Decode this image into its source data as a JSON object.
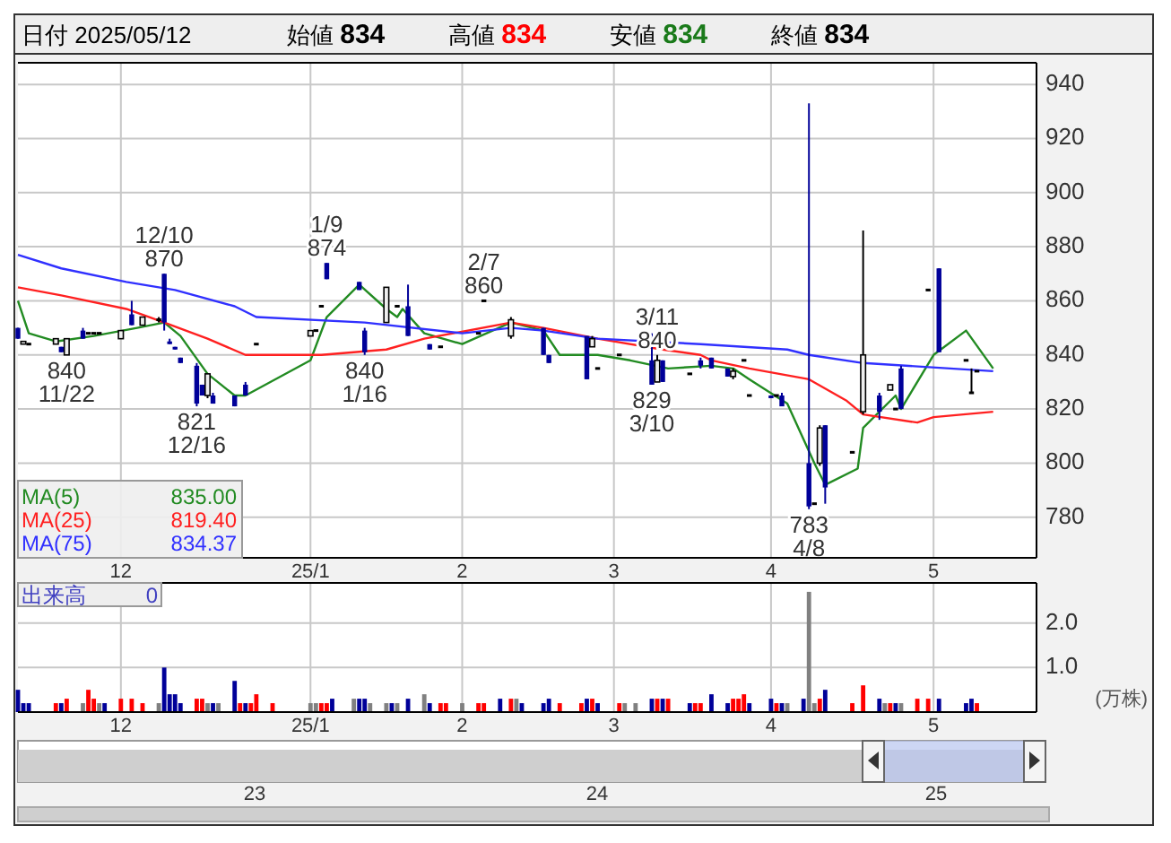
{
  "chart_data": [
    {
      "type": "candlestick",
      "grid": true,
      "legend": "bottom left",
      "xlim": [
        "2024-11-13",
        "2025-05-20"
      ],
      "ylim": [
        765,
        948
      ],
      "yticks": [
        780,
        800,
        820,
        840,
        860,
        880,
        900,
        920,
        940
      ],
      "xticks": [
        {
          "value": "2024-12-02",
          "label": "12"
        },
        {
          "value": "2025-01-06",
          "label": "25/1"
        },
        {
          "value": "2025-02-03",
          "label": "2"
        },
        {
          "value": "2025-03-03",
          "label": "3"
        },
        {
          "value": "2025-04-01",
          "label": "4"
        },
        {
          "value": "2025-05-01",
          "label": "5"
        }
      ],
      "x": [
        "2024-11-13",
        "2024-11-14",
        "2024-11-15",
        "2024-11-20",
        "2024-11-21",
        "2024-11-22",
        "2024-11-25",
        "2024-11-26",
        "2024-11-27",
        "2024-11-28",
        "2024-12-02",
        "2024-12-04",
        "2024-12-06",
        "2024-12-09",
        "2024-12-10",
        "2024-12-11",
        "2024-12-12",
        "2024-12-13",
        "2024-12-16",
        "2024-12-17",
        "2024-12-18",
        "2024-12-19",
        "2024-12-23",
        "2024-12-25",
        "2024-12-27",
        "2025-01-06",
        "2025-01-07",
        "2025-01-08",
        "2025-01-09",
        "2025-01-15",
        "2025-01-16",
        "2025-01-20",
        "2025-01-22",
        "2025-01-24",
        "2025-01-28",
        "2025-01-30",
        "2025-02-06",
        "2025-02-07",
        "2025-02-12",
        "2025-02-18",
        "2025-02-19",
        "2025-02-26",
        "2025-02-27",
        "2025-02-28",
        "2025-03-04",
        "2025-03-10",
        "2025-03-11",
        "2025-03-12",
        "2025-03-17",
        "2025-03-19",
        "2025-03-21",
        "2025-03-24",
        "2025-03-25",
        "2025-03-27",
        "2025-03-28",
        "2025-04-01",
        "2025-04-02",
        "2025-04-03",
        "2025-04-08",
        "2025-04-09",
        "2025-04-10",
        "2025-04-11",
        "2025-04-16",
        "2025-04-18",
        "2025-04-21",
        "2025-04-23",
        "2025-04-24",
        "2025-04-25",
        "2025-04-30",
        "2025-05-02",
        "2025-05-07",
        "2025-05-08",
        "2025-05-09"
      ],
      "ohlc": [
        [
          850,
          850,
          846,
          846
        ],
        [
          844,
          845,
          844,
          845
        ],
        [
          844,
          844,
          844,
          844
        ],
        [
          844,
          846,
          844,
          846
        ],
        [
          843,
          843,
          841,
          841
        ],
        [
          840,
          846,
          840,
          846
        ],
        [
          849,
          850,
          846,
          846
        ],
        [
          848,
          848,
          848,
          848
        ],
        [
          848,
          848,
          848,
          848
        ],
        [
          848,
          848,
          848,
          848
        ],
        [
          846,
          849,
          846,
          849
        ],
        [
          855,
          860,
          851,
          851
        ],
        [
          851,
          854,
          851,
          854
        ],
        [
          853,
          854,
          852,
          853
        ],
        [
          870,
          870,
          849,
          852
        ],
        [
          845,
          846,
          844,
          844
        ],
        [
          843,
          843,
          842,
          842
        ],
        [
          839,
          839,
          837,
          837
        ],
        [
          836,
          837,
          821,
          822
        ],
        [
          829,
          829,
          825,
          825
        ],
        [
          825,
          833,
          824,
          833
        ],
        [
          825,
          826,
          822,
          822
        ],
        [
          825,
          825,
          821,
          821
        ],
        [
          829,
          830,
          825,
          825
        ],
        [
          844,
          844,
          844,
          844
        ],
        [
          847,
          849,
          847,
          849
        ],
        [
          849,
          849,
          849,
          849
        ],
        [
          858,
          858,
          858,
          858
        ],
        [
          874,
          874,
          868,
          868
        ],
        [
          867,
          867,
          864,
          864
        ],
        [
          849,
          850,
          840,
          841
        ],
        [
          852,
          865,
          852,
          865
        ],
        [
          858,
          858,
          858,
          858
        ],
        [
          858,
          866,
          847,
          847
        ],
        [
          844,
          844,
          842,
          842
        ],
        [
          843,
          843,
          843,
          843
        ],
        [
          848,
          848,
          848,
          848
        ],
        [
          860,
          860,
          860,
          860
        ],
        [
          847,
          854,
          846,
          853
        ],
        [
          850,
          850,
          840,
          840
        ],
        [
          840,
          840,
          837,
          837
        ],
        [
          847,
          847,
          831,
          831
        ],
        [
          843,
          847,
          843,
          846
        ],
        [
          835,
          835,
          835,
          835
        ],
        [
          840,
          840,
          840,
          840
        ],
        [
          838,
          848,
          829,
          829
        ],
        [
          830,
          840,
          830,
          838
        ],
        [
          838,
          838,
          830,
          830
        ],
        [
          833,
          833,
          833,
          833
        ],
        [
          838,
          839,
          835,
          836
        ],
        [
          839,
          839,
          835,
          835
        ],
        [
          835,
          835,
          832,
          832
        ],
        [
          832,
          835,
          831,
          834
        ],
        [
          838,
          838,
          838,
          838
        ],
        [
          825,
          825,
          825,
          825
        ],
        [
          825,
          825,
          824,
          824
        ],
        [
          825,
          825,
          825,
          825
        ],
        [
          825,
          826,
          821,
          821
        ],
        [
          800,
          933,
          783,
          784
        ],
        [
          785,
          785,
          785,
          785
        ],
        [
          800,
          814,
          799,
          813
        ],
        [
          814,
          814,
          785,
          791
        ],
        [
          804,
          804,
          804,
          804
        ],
        [
          819,
          886,
          818,
          840
        ],
        [
          825,
          826,
          816,
          819
        ],
        [
          827,
          829,
          827,
          829
        ],
        [
          820,
          820,
          820,
          820
        ],
        [
          835,
          836,
          820,
          820
        ],
        [
          864,
          864,
          864,
          864
        ],
        [
          872,
          872,
          841,
          841
        ],
        [
          838,
          838,
          838,
          838
        ],
        [
          826,
          835,
          826,
          826
        ],
        [
          834,
          834,
          834,
          834
        ]
      ],
      "series": [
        {
          "type": "line",
          "name": "MA(5)",
          "color": "#228b22",
          "x": [
            "2024-11-13",
            "2024-11-15",
            "2024-11-20",
            "2024-11-27",
            "2024-12-05",
            "2024-12-10",
            "2024-12-13",
            "2024-12-18",
            "2024-12-23",
            "2024-12-25",
            "2025-01-06",
            "2025-01-09",
            "2025-01-15",
            "2025-01-20",
            "2025-01-22",
            "2025-01-23",
            "2025-01-27",
            "2025-02-03",
            "2025-02-12",
            "2025-02-18",
            "2025-02-21",
            "2025-02-28",
            "2025-03-06",
            "2025-03-13",
            "2025-03-21",
            "2025-03-25",
            "2025-03-28",
            "2025-04-04",
            "2025-04-09",
            "2025-04-11",
            "2025-04-17",
            "2025-04-18",
            "2025-04-24",
            "2025-04-25",
            "2025-05-01",
            "2025-05-07",
            "2025-05-12"
          ],
          "values": [
            860,
            848,
            845,
            847,
            850,
            852,
            847,
            833,
            825,
            825,
            838,
            854,
            866,
            857,
            854,
            857,
            848,
            844,
            852,
            849,
            840,
            840,
            838,
            835,
            836,
            835,
            831,
            822,
            800,
            792,
            798,
            813,
            825,
            820,
            840,
            849,
            835
          ]
        },
        {
          "type": "line",
          "name": "MA(25)",
          "color": "#ff2020",
          "x": [
            "2024-11-13",
            "2024-11-21",
            "2024-12-03",
            "2024-12-10",
            "2024-12-18",
            "2024-12-25",
            "2025-01-08",
            "2025-01-20",
            "2025-01-27",
            "2025-02-12",
            "2025-02-18",
            "2025-02-28",
            "2025-03-12",
            "2025-03-19",
            "2025-03-21",
            "2025-03-28",
            "2025-04-08",
            "2025-04-15",
            "2025-04-18",
            "2025-04-28",
            "2025-05-01",
            "2025-05-12"
          ],
          "values": [
            865,
            862,
            857,
            852,
            846,
            840,
            840,
            842,
            846,
            852,
            850,
            846,
            842,
            840,
            838,
            835,
            831,
            823,
            818,
            815,
            817,
            819
          ]
        },
        {
          "type": "line",
          "name": "MA(75)",
          "color": "#3030ff",
          "x": [
            "2024-11-13",
            "2024-11-21",
            "2024-12-03",
            "2024-12-12",
            "2024-12-23",
            "2024-12-27",
            "2025-01-16",
            "2025-02-03",
            "2025-02-12",
            "2025-02-18",
            "2025-02-28",
            "2025-03-19",
            "2025-04-04",
            "2025-04-08",
            "2025-04-18",
            "2025-05-12"
          ],
          "values": [
            877,
            872,
            867,
            864,
            858,
            854,
            852,
            848,
            850,
            849,
            846,
            844,
            842,
            840,
            837,
            834
          ]
        }
      ],
      "annotations": [
        "日付 2025/05/12",
        "始値 834",
        "高値 834",
        "安値 834",
        "終値 834",
        "835.00",
        "819.40",
        "834.37",
        {
          "text": "12/10",
          "x": "2024-12-10",
          "y": 870
        },
        {
          "text": "870",
          "x": "2024-12-10",
          "y": 870
        },
        {
          "text": "840",
          "x": "2024-11-22",
          "y": 840
        },
        {
          "text": "11/22",
          "x": "2024-11-22",
          "y": 840
        },
        {
          "text": "821",
          "x": "2024-12-16",
          "y": 821
        },
        {
          "text": "12/16",
          "x": "2024-12-16",
          "y": 821
        },
        {
          "text": "1/9",
          "x": "2025-01-09",
          "y": 874
        },
        {
          "text": "874",
          "x": "2025-01-09",
          "y": 874
        },
        {
          "text": "840",
          "x": "2025-01-16",
          "y": 840
        },
        {
          "text": "1/16",
          "x": "2025-01-16",
          "y": 840
        },
        {
          "text": "2/7",
          "x": "2025-02-07",
          "y": 860
        },
        {
          "text": "860",
          "x": "2025-02-07",
          "y": 860
        },
        {
          "text": "3/11",
          "x": "2025-03-11",
          "y": 840
        },
        {
          "text": "840",
          "x": "2025-03-11",
          "y": 840
        },
        {
          "text": "829",
          "x": "2025-03-10",
          "y": 829
        },
        {
          "text": "3/10",
          "x": "2025-03-10",
          "y": 829
        },
        {
          "text": "783",
          "x": "2025-04-08",
          "y": 783
        },
        {
          "text": "4/8",
          "x": "2025-04-08",
          "y": 783
        }
      ]
    },
    {
      "type": "bar",
      "grid": true,
      "legend": "top left",
      "ylabel": "(万株)",
      "xlim": [
        "2024-11-13",
        "2025-05-20"
      ],
      "ylim": [
        0,
        2.9
      ],
      "yticks": [
        {
          "value": 1,
          "label": "1.0"
        },
        {
          "value": 2,
          "label": "2.0"
        }
      ],
      "xticks": [
        {
          "value": "2024-12-02",
          "label": "12"
        },
        {
          "value": "2025-01-06",
          "label": "25/1"
        },
        {
          "value": "2025-02-03",
          "label": "2"
        },
        {
          "value": "2025-03-03",
          "label": "3"
        },
        {
          "value": "2025-04-01",
          "label": "4"
        },
        {
          "value": "2025-05-01",
          "label": "5"
        }
      ],
      "x": [
        "2024-11-13",
        "2024-11-14",
        "2024-11-15",
        "2024-11-20",
        "2024-11-21",
        "2024-11-22",
        "2024-11-25",
        "2024-11-26",
        "2024-11-27",
        "2024-11-28",
        "2024-11-29",
        "2024-12-02",
        "2024-12-04",
        "2024-12-06",
        "2024-12-09",
        "2024-12-10",
        "2024-12-11",
        "2024-12-12",
        "2024-12-13",
        "2024-12-16",
        "2024-12-17",
        "2024-12-18",
        "2024-12-19",
        "2024-12-20",
        "2024-12-23",
        "2024-12-24",
        "2024-12-25",
        "2024-12-26",
        "2024-12-27",
        "2024-12-30",
        "2025-01-06",
        "2025-01-07",
        "2025-01-08",
        "2025-01-09",
        "2025-01-10",
        "2025-01-14",
        "2025-01-15",
        "2025-01-16",
        "2025-01-17",
        "2025-01-20",
        "2025-01-21",
        "2025-01-22",
        "2025-01-24",
        "2025-01-27",
        "2025-01-28",
        "2025-01-30",
        "2025-01-31",
        "2025-02-03",
        "2025-02-06",
        "2025-02-07",
        "2025-02-10",
        "2025-02-12",
        "2025-02-13",
        "2025-02-14",
        "2025-02-18",
        "2025-02-19",
        "2025-02-21",
        "2025-02-25",
        "2025-02-26",
        "2025-02-27",
        "2025-02-28",
        "2025-03-04",
        "2025-03-05",
        "2025-03-07",
        "2025-03-10",
        "2025-03-11",
        "2025-03-12",
        "2025-03-13",
        "2025-03-17",
        "2025-03-18",
        "2025-03-19",
        "2025-03-21",
        "2025-03-24",
        "2025-03-25",
        "2025-03-26",
        "2025-03-27",
        "2025-03-28",
        "2025-04-01",
        "2025-04-02",
        "2025-04-03",
        "2025-04-04",
        "2025-04-07",
        "2025-04-08",
        "2025-04-09",
        "2025-04-10",
        "2025-04-11",
        "2025-04-16",
        "2025-04-18",
        "2025-04-21",
        "2025-04-22",
        "2025-04-23",
        "2025-04-24",
        "2025-04-25",
        "2025-04-28",
        "2025-04-30",
        "2025-05-02",
        "2025-05-07",
        "2025-05-08",
        "2025-05-09"
      ],
      "series": [
        {
          "name": "出来高",
          "values": [
            0.5,
            0.2,
            0.2,
            0.2,
            0.2,
            0.3,
            0.2,
            0.5,
            0.3,
            0.2,
            0.2,
            0.3,
            0.3,
            0.2,
            0.2,
            1.0,
            0.4,
            0.4,
            0.2,
            0.3,
            0.3,
            0.2,
            0.2,
            0.2,
            0.7,
            0.2,
            0.2,
            0.2,
            0.4,
            0.2,
            0.2,
            0.2,
            0.2,
            0.2,
            0.3,
            0.3,
            0.3,
            0.3,
            0.2,
            0.2,
            0.2,
            0.2,
            0.3,
            0.4,
            0.2,
            0.2,
            0.2,
            0.2,
            0.2,
            0.2,
            0.3,
            0.3,
            0.3,
            0.2,
            0.2,
            0.3,
            0.2,
            0.2,
            0.3,
            0.3,
            0.2,
            0.2,
            0.2,
            0.2,
            0.3,
            0.3,
            0.3,
            0.3,
            0.2,
            0.2,
            0.2,
            0.4,
            0.2,
            0.3,
            0.3,
            0.4,
            0.2,
            0.3,
            0.2,
            0.2,
            0.2,
            0.3,
            2.7,
            0.2,
            0.3,
            0.5,
            0.2,
            0.6,
            0.3,
            0.2,
            0.2,
            0.2,
            0.2,
            0.3,
            0.3,
            0.3,
            0.2,
            0.3,
            0.2
          ],
          "colors": [
            "#000099",
            "#000099",
            "#000099",
            "#ff0000",
            "#000099",
            "#ff0000",
            "#808080",
            "#ff0000",
            "#ff0000",
            "#808080",
            "#000099",
            "#ff0000",
            "#ff0000",
            "#ff0000",
            "#808080",
            "#000099",
            "#000099",
            "#000099",
            "#000099",
            "#ff0000",
            "#ff0000",
            "#808080",
            "#000099",
            "#808080",
            "#000099",
            "#ff0000",
            "#000099",
            "#ff0000",
            "#ff0000",
            "#ff0000",
            "#808080",
            "#808080",
            "#ff0000",
            "#ff0000",
            "#000099",
            "#808080",
            "#000099",
            "#000099",
            "#808080",
            "#808080",
            "#000099",
            "#808080",
            "#000099",
            "#808080",
            "#000099",
            "#ff0000",
            "#ff0000",
            "#808080",
            "#ff0000",
            "#ff0000",
            "#000099",
            "#ff0000",
            "#808080",
            "#000099",
            "#000099",
            "#000099",
            "#ff0000",
            "#ff0000",
            "#000099",
            "#ff0000",
            "#000099",
            "#ff0000",
            "#808080",
            "#808080",
            "#000099",
            "#ff0000",
            "#000099",
            "#ff0000",
            "#000099",
            "#ff0000",
            "#ff0000",
            "#000099",
            "#000099",
            "#ff0000",
            "#ff0000",
            "#ff0000",
            "#000099",
            "#000099",
            "#ff0000",
            "#000099",
            "#808080",
            "#000099",
            "#808080",
            "#808080",
            "#ff0000",
            "#000099",
            "#ff0000",
            "#ff0000",
            "#000099",
            "#808080",
            "#ff0000",
            "#000099",
            "#808080",
            "#ff0000",
            "#ff0000",
            "#000099",
            "#000099",
            "#000099",
            "#ff0000"
          ]
        }
      ],
      "annotations": [
        "0",
        "23",
        "24",
        "25"
      ]
    }
  ]
}
